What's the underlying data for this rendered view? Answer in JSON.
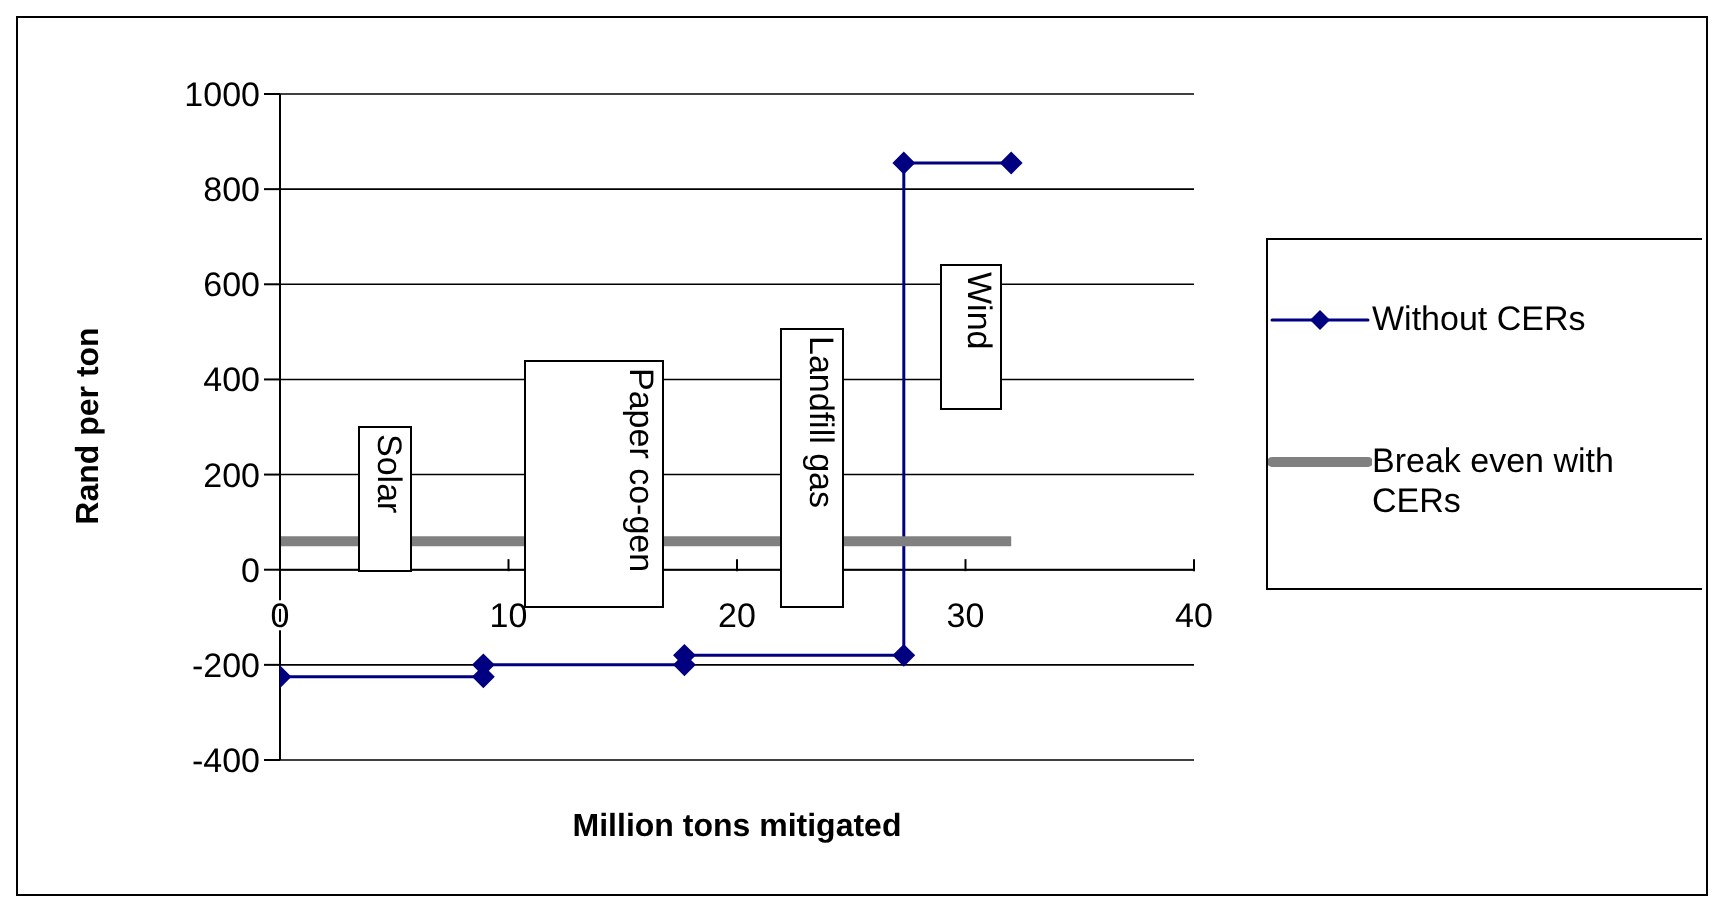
{
  "chart_data": {
    "type": "line",
    "xlabel": "Million tons mitigated",
    "ylabel": "Rand per ton",
    "xlim": [
      0,
      40
    ],
    "xticks": [
      0,
      10,
      20,
      30,
      40
    ],
    "ylim": [
      -400,
      1000
    ],
    "yticks": [
      -400,
      -200,
      0,
      200,
      400,
      600,
      800,
      1000
    ],
    "grid": "y",
    "legend": "right",
    "series": [
      {
        "name": "Without CERs",
        "color": "#000080",
        "marker": "diamond",
        "x": [
          0,
          8.9,
          8.9,
          17.7,
          17.7,
          27.3,
          27.3,
          32
        ],
        "values": [
          -225,
          -225,
          -200,
          -200,
          -180,
          -180,
          855,
          855
        ]
      },
      {
        "name": "Break even with CERs",
        "color": "#808080",
        "marker": "none",
        "x": [
          0,
          32
        ],
        "values": [
          60,
          60
        ]
      }
    ],
    "annotations": [
      "Solar",
      "Paper co-gen",
      "Landfill gas",
      "Wind"
    ]
  }
}
